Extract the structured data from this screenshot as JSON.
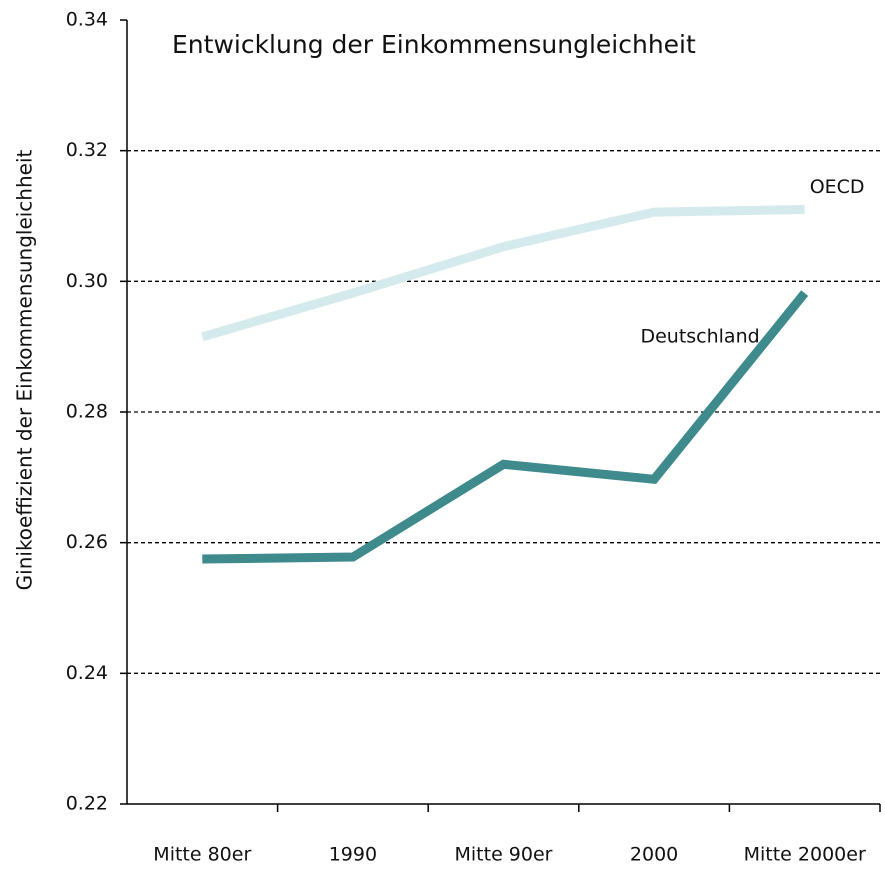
{
  "chart_data": {
    "type": "line",
    "title": "Entwicklung der Einkommensungleichheit",
    "y_label": "Ginikoeffizient  der Einkommensungleichheit",
    "categories": [
      "Mitte 80er",
      "1990",
      "Mitte 90er",
      "2000",
      "Mitte 2000er"
    ],
    "series": [
      {
        "name": "OECD",
        "color": "#d5eaed",
        "values": [
          0.2915,
          0.2982,
          0.3053,
          0.3106,
          0.311
        ]
      },
      {
        "name": "Deutschland",
        "color": "#3e8a8c",
        "values": [
          0.2575,
          0.2578,
          0.272,
          0.2697,
          0.2982
        ]
      }
    ],
    "ylim": [
      0.22,
      0.34
    ],
    "yticks": [
      0.22,
      0.24,
      0.26,
      0.28,
      {
        "value": 0.3,
        "label": "0.30"
      },
      0.32,
      0.34
    ],
    "grid": true
  }
}
